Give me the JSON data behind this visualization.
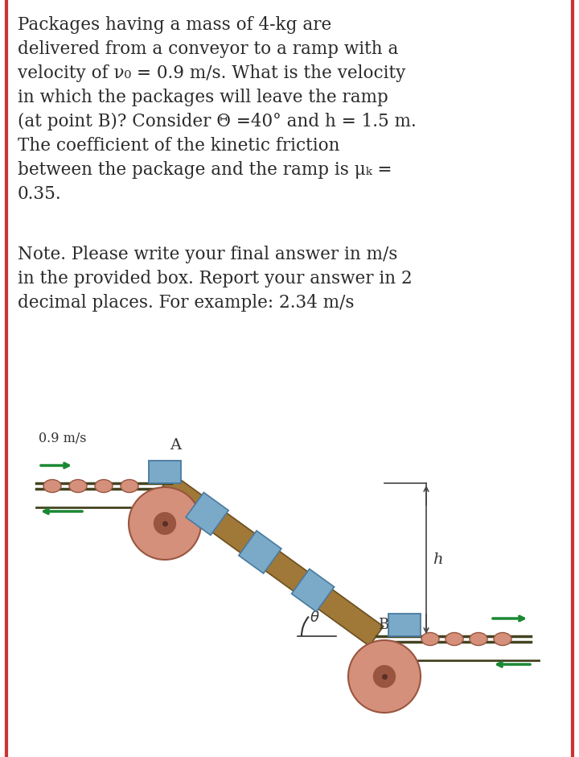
{
  "bg_color": "#ffffff",
  "border_color": "#cc3333",
  "text_color": "#2a2a2a",
  "problem_lines": [
    [
      "Packages having a mass of 4-kg are"
    ],
    [
      "delivered from a conveyor to a ramp with a"
    ],
    [
      "velocity of ",
      "italic",
      "v",
      "0",
      " = 0.9 m/s. What is the velocity"
    ],
    [
      "in which the packages will leave the ramp"
    ],
    [
      "(at point B)? Consider Θ =40° and h = 1.5 m."
    ],
    [
      "The coefficient of the kinetic friction"
    ],
    [
      "between the package and the ramp is ",
      "italic_mu",
      "μ",
      "k",
      " ="
    ],
    [
      "0.35."
    ]
  ],
  "note_lines": [
    "Note. Please write your final answer in m/s",
    "in the provided box. Report your answer in 2",
    "decimal places. For example: 2.34 m/s"
  ],
  "roller_color": "#d4907a",
  "roller_edge": "#9a5540",
  "roller_center_color": "#7a4535",
  "package_color": "#7aaac8",
  "package_edge": "#4a7aa0",
  "arrow_color": "#1a8833",
  "ramp_color": "#a07838",
  "ramp_edge": "#6b4f20",
  "belt_color": "#444422",
  "label_color": "#333333",
  "dim_color": "#444444",
  "fig_width": 7.2,
  "fig_height": 9.4,
  "dpi": 100
}
